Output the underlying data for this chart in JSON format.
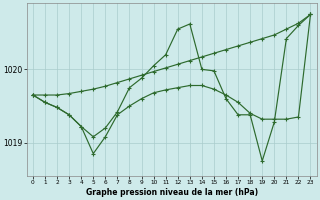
{
  "background_color": "#ceeaea",
  "grid_color": "#aacccc",
  "line_color": "#2d6a2d",
  "title": "Graphe pression niveau de la mer (hPa)",
  "xlabel_ticks": [
    0,
    1,
    2,
    3,
    4,
    5,
    6,
    7,
    8,
    9,
    10,
    11,
    12,
    13,
    14,
    15,
    16,
    17,
    18,
    19,
    20,
    21,
    22,
    23
  ],
  "ylim": [
    1018.55,
    1020.9
  ],
  "yticks": [
    1019.0,
    1020.0
  ],
  "s1": [
    1019.65,
    1019.65,
    1019.65,
    1019.67,
    1019.7,
    1019.73,
    1019.77,
    1019.82,
    1019.87,
    1019.92,
    1019.97,
    1020.02,
    1020.07,
    1020.12,
    1020.17,
    1020.22,
    1020.27,
    1020.32,
    1020.37,
    1020.42,
    1020.47,
    1020.55,
    1020.63,
    1020.75
  ],
  "s2": [
    1019.65,
    1019.55,
    1019.48,
    1019.38,
    1019.22,
    1019.08,
    1019.2,
    1019.42,
    1019.75,
    1019.88,
    1020.05,
    1020.2,
    1020.55,
    1020.62,
    1020.0,
    1019.98,
    1019.6,
    1019.38,
    1019.38,
    1018.75,
    1019.28,
    1020.42,
    1020.6,
    1020.75
  ],
  "s3": [
    1019.65,
    1019.55,
    1019.48,
    1019.38,
    1019.22,
    1018.85,
    1019.08,
    1019.38,
    1019.5,
    1019.6,
    1019.68,
    1019.72,
    1019.75,
    1019.78,
    1019.78,
    1019.73,
    1019.65,
    1019.55,
    1019.4,
    1019.32,
    1019.32,
    1019.32,
    1019.35,
    1020.75
  ],
  "figsize": [
    3.2,
    2.0
  ],
  "dpi": 100,
  "lw": 0.85,
  "ms": 2.8
}
